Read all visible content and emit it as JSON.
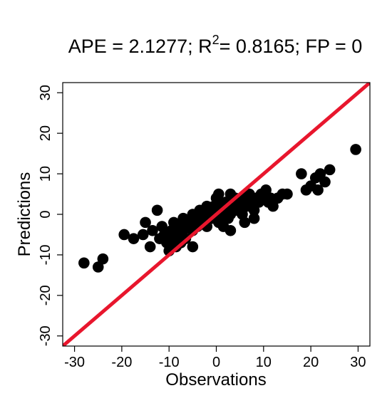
{
  "chart_data": {
    "type": "scatter",
    "title": {
      "part1": "APE = 2.1277; R",
      "superscript": "2",
      "part2": "= 0.8165; FP = 0"
    },
    "xlabel": "Observations",
    "ylabel": "Predictions",
    "xlim": [
      -32.5,
      32.5
    ],
    "ylim": [
      -32.5,
      32.5
    ],
    "x_ticks": [
      -30,
      -20,
      -10,
      0,
      10,
      20,
      30
    ],
    "x_tick_labels": [
      "-30",
      "-20",
      "-10",
      "0",
      "10",
      "20",
      "30"
    ],
    "y_ticks": [
      -30,
      -20,
      -10,
      0,
      10,
      20,
      30
    ],
    "y_tick_labels": [
      "-30",
      "-20",
      "-10",
      "0",
      "10",
      "20",
      "30"
    ],
    "reference_line": {
      "slope": 1,
      "intercept": 0,
      "color": "#e8162d"
    },
    "point_color": "#000000",
    "points": [
      [
        -28,
        -12
      ],
      [
        -25,
        -13
      ],
      [
        -24,
        -11
      ],
      [
        -19.5,
        -5
      ],
      [
        -17.5,
        -6
      ],
      [
        -15.5,
        -5
      ],
      [
        -15,
        -2
      ],
      [
        -14,
        -8
      ],
      [
        -13.5,
        -4
      ],
      [
        -12.5,
        1
      ],
      [
        -12,
        -6
      ],
      [
        -11.5,
        -3
      ],
      [
        -11,
        -5
      ],
      [
        -10.5,
        -7
      ],
      [
        -10,
        -9
      ],
      [
        -9.5,
        -4
      ],
      [
        -9,
        -6
      ],
      [
        -9,
        -2
      ],
      [
        -8.5,
        -8
      ],
      [
        -8,
        -5
      ],
      [
        -8,
        -3
      ],
      [
        -7.5,
        -7
      ],
      [
        -7,
        -4
      ],
      [
        -7,
        -1
      ],
      [
        -6.5,
        -6
      ],
      [
        -6,
        -3
      ],
      [
        -5.5,
        -2
      ],
      [
        -5,
        0
      ],
      [
        -5,
        -4
      ],
      [
        -4.5,
        -1
      ],
      [
        -4,
        -3
      ],
      [
        -3.5,
        1
      ],
      [
        -3,
        -2
      ],
      [
        -2.5,
        0
      ],
      [
        -2,
        -3
      ],
      [
        -1.5,
        1
      ],
      [
        -1,
        -1
      ],
      [
        -0.5,
        2
      ],
      [
        0,
        0
      ],
      [
        0,
        4
      ],
      [
        0.5,
        5
      ],
      [
        1,
        -1
      ],
      [
        1,
        2
      ],
      [
        1.5,
        -3
      ],
      [
        2,
        1
      ],
      [
        2,
        3
      ],
      [
        2.5,
        -1
      ],
      [
        3,
        5
      ],
      [
        3,
        0
      ],
      [
        3.5,
        2
      ],
      [
        4,
        4
      ],
      [
        4.5,
        1
      ],
      [
        5,
        3
      ],
      [
        5.5,
        0
      ],
      [
        6,
        4
      ],
      [
        6.5,
        2
      ],
      [
        7,
        5
      ],
      [
        7.5,
        3
      ],
      [
        8,
        1
      ],
      [
        8.5,
        4
      ],
      [
        9,
        3
      ],
      [
        9.5,
        5
      ],
      [
        10,
        4
      ],
      [
        10.5,
        6
      ],
      [
        11,
        3
      ],
      [
        11.5,
        4
      ],
      [
        12,
        2
      ],
      [
        13,
        4
      ],
      [
        14,
        5
      ],
      [
        15,
        5
      ],
      [
        18,
        10
      ],
      [
        19,
        6
      ],
      [
        20,
        7
      ],
      [
        21,
        9
      ],
      [
        21.5,
        6
      ],
      [
        22,
        10
      ],
      [
        23,
        8
      ],
      [
        24,
        11
      ],
      [
        29.5,
        16
      ],
      [
        -5,
        -8
      ],
      [
        6,
        -2
      ],
      [
        3,
        -4
      ],
      [
        -2,
        2
      ],
      [
        5,
        1
      ],
      [
        8,
        -1
      ],
      [
        0.5,
        -2
      ]
    ]
  }
}
